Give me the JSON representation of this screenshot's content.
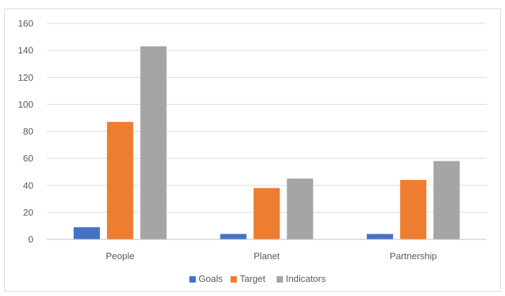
{
  "chart_data": {
    "type": "bar",
    "title": "",
    "xlabel": "",
    "ylabel": "",
    "categories": [
      "People",
      "Planet",
      "Partnership"
    ],
    "series": [
      {
        "name": "Goals",
        "values": [
          9,
          4,
          4
        ],
        "color": "#4472c4"
      },
      {
        "name": "Target",
        "values": [
          87,
          38,
          44
        ],
        "color": "#ed7d31"
      },
      {
        "name": "Indicators",
        "values": [
          143,
          45,
          58
        ],
        "color": "#a5a5a5"
      }
    ],
    "ylim": [
      0,
      160
    ],
    "yticks": [
      "0",
      "20",
      "40",
      "60",
      "80",
      "100",
      "120",
      "140",
      "160"
    ],
    "grid": true,
    "legend_position": "bottom",
    "gridline_color": "#d9d9d9",
    "axis_color": "#bfbfbf"
  }
}
